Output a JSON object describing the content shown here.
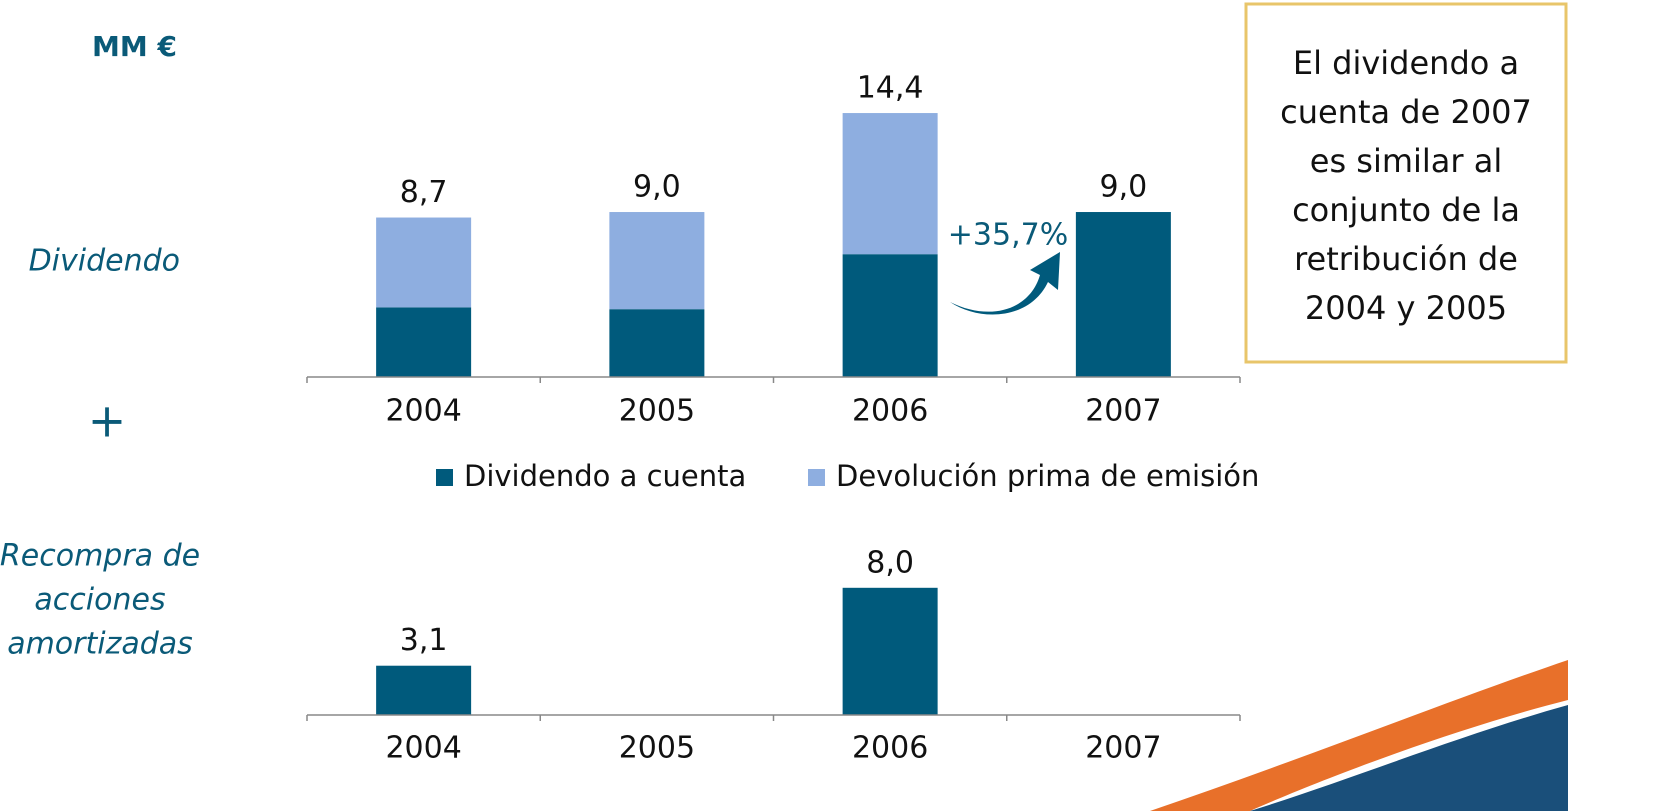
{
  "unit": "MM €",
  "operator": "+",
  "note": [
    "El dividendo a",
    "cuenta de 2007",
    "es similar al",
    "conjunto de la",
    "retribución de",
    "2004 y 2005"
  ],
  "chart_data": [
    {
      "type": "stacked-bar",
      "row_label": [
        "Dividendo"
      ],
      "categories": [
        "2004",
        "2005",
        "2006",
        "2007"
      ],
      "series": [
        {
          "name": "Dividendo a cuenta",
          "color": "#005a7c",
          "values": [
            3.8,
            3.7,
            6.7,
            9.0
          ]
        },
        {
          "name": "Devolución prima de emisión",
          "color": "#8eaee0",
          "values": [
            4.9,
            5.3,
            7.7,
            null
          ]
        }
      ],
      "totals": {
        "values": [
          8.7,
          9.0,
          14.4,
          9.0
        ],
        "value_labels": [
          "8,7",
          "9,0",
          "14,4",
          "9,0"
        ]
      },
      "annotation": "+35,7%",
      "ylim": [
        0,
        16
      ],
      "legend": "bottom"
    },
    {
      "type": "bar",
      "row_label": [
        "Recompra de",
        "acciones",
        "amortizadas"
      ],
      "categories": [
        "2004",
        "2005",
        "2006",
        "2007"
      ],
      "values": [
        3.1,
        null,
        8.0,
        null
      ],
      "value_labels": [
        "3,1",
        null,
        "8,0",
        null
      ],
      "color": "#005a7c",
      "ylim": [
        0,
        10
      ]
    }
  ]
}
